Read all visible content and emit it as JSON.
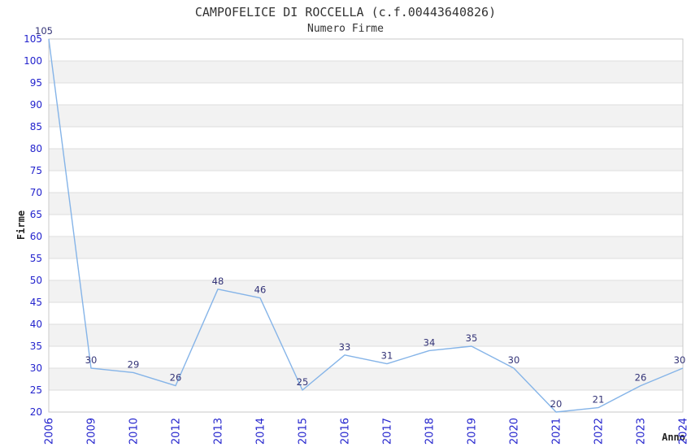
{
  "chart_data": {
    "type": "line",
    "title": "CAMPOFELICE DI ROCCELLA (c.f.00443640826)",
    "subtitle": "Numero Firme",
    "xlabel": "Anno",
    "ylabel": "Firme",
    "categories": [
      "2006",
      "2009",
      "2010",
      "2012",
      "2013",
      "2014",
      "2015",
      "2016",
      "2017",
      "2018",
      "2019",
      "2020",
      "2021",
      "2022",
      "2023",
      "2024"
    ],
    "values": [
      105,
      30,
      29,
      26,
      48,
      46,
      25,
      33,
      31,
      34,
      35,
      30,
      20,
      21,
      26,
      30
    ],
    "ylim": [
      20,
      105
    ],
    "ytick_step": 5,
    "grid": true,
    "legend": "none",
    "band_fill": "alternating horizontal bands every 5 units",
    "colors": {
      "line": "#85b4e8",
      "tick_labels": "#2323cd",
      "data_labels": "#333377",
      "band": "#f2f2f2",
      "gridline": "#dedede",
      "plot_border": "#c9c9c9",
      "title": "#333333",
      "background": "#ffffff"
    }
  }
}
